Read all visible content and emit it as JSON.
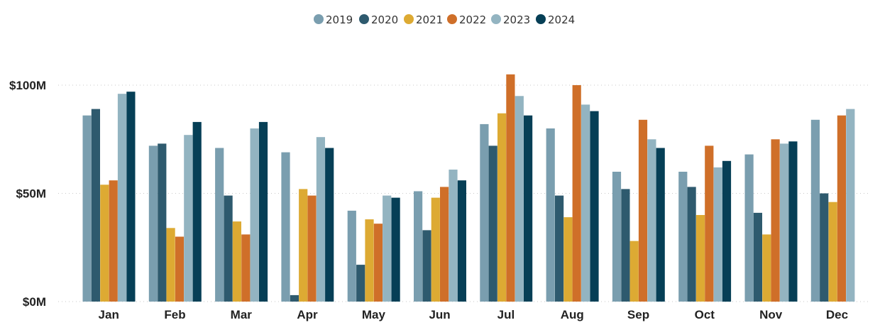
{
  "chart_data": {
    "type": "bar",
    "title": "",
    "xlabel": "",
    "ylabel": "",
    "categories": [
      "Jan",
      "Feb",
      "Mar",
      "Apr",
      "May",
      "Jun",
      "Jul",
      "Aug",
      "Sep",
      "Oct",
      "Nov",
      "Dec"
    ],
    "series": [
      {
        "name": "2019",
        "color": "#7a9eaf",
        "values": [
          86,
          72,
          71,
          69,
          42,
          51,
          82,
          80,
          60,
          60,
          68,
          84
        ]
      },
      {
        "name": "2020",
        "color": "#2e5a6e",
        "values": [
          89,
          73,
          49,
          3,
          17,
          33,
          72,
          49,
          52,
          53,
          41,
          50
        ]
      },
      {
        "name": "2021",
        "color": "#ddaa33",
        "values": [
          54,
          34,
          37,
          52,
          38,
          48,
          87,
          39,
          28,
          40,
          31,
          46
        ]
      },
      {
        "name": "2022",
        "color": "#cf6f29",
        "values": [
          56,
          30,
          31,
          49,
          36,
          53,
          105,
          100,
          84,
          72,
          75,
          86
        ]
      },
      {
        "name": "2023",
        "color": "#93b4c1",
        "values": [
          96,
          77,
          80,
          76,
          49,
          61,
          95,
          91,
          75,
          62,
          73,
          89
        ]
      },
      {
        "name": "2024",
        "color": "#063f56",
        "values": [
          97,
          83,
          83,
          71,
          48,
          56,
          86,
          88,
          71,
          65,
          74,
          null
        ]
      }
    ],
    "ylim": [
      0,
      110
    ],
    "yticks": [
      {
        "value": 0,
        "label": "$0M"
      },
      {
        "value": 50,
        "label": "$50M"
      },
      {
        "value": 100,
        "label": "$100M"
      }
    ],
    "legend_position": "top-center",
    "grid": true
  }
}
